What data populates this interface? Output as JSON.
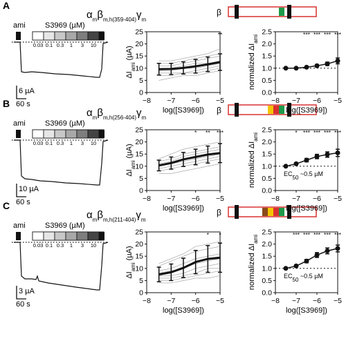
{
  "figure": {
    "conc_label": "S3969 (µM)",
    "ami_label": "ami",
    "beta_label": "β",
    "conc_ticks": [
      "0.03",
      "0.1",
      "0.3",
      "1",
      "3",
      "10"
    ],
    "stars": "***"
  },
  "panels": [
    {
      "letter": "A",
      "title": "αmβm,h(359-404)γm",
      "scale_current": "6 µA",
      "scale_time": "60 s",
      "ec50": "",
      "beta_stripes": [
        "#1e9a4a"
      ]
    },
    {
      "letter": "B",
      "title": "αmβm,h(256-404)γm",
      "scale_current": "10 µA",
      "scale_time": "60 s",
      "ec50": "EC50 ~0.5 µM",
      "beta_stripes": [
        "#f5c400",
        "#d93030",
        "#1e9a4a"
      ]
    },
    {
      "letter": "C",
      "title": "αmβm,h(211-404)γm",
      "scale_current": "3 µA",
      "scale_time": "60 s",
      "ec50": "EC50 ~0.5 µM",
      "beta_stripes": [
        "#8b4a1a",
        "#f5c400",
        "#d93030",
        "#1e9a4a"
      ]
    }
  ],
  "chart_data": [
    {
      "type": "line",
      "panel": "A",
      "title": "",
      "xlabel": "log([S3969])",
      "ylabel": "ΔIami (µA)",
      "xlim": [
        -8,
        -5
      ],
      "ylim": [
        0,
        25
      ],
      "xticks": [
        -8,
        -7,
        -6,
        -5
      ],
      "yticks": [
        0,
        5,
        10,
        15,
        20,
        25
      ],
      "x": [
        -7.5,
        -7,
        -6.5,
        -6,
        -5.5,
        -5
      ],
      "series": [
        {
          "values": [
            9.6,
            9.7,
            10.1,
            10.8,
            11.6,
            12.5
          ],
          "sd": [
            2.4,
            2.3,
            2.5,
            2.8,
            3.0,
            3.4
          ]
        }
      ],
      "significance": [
        "",
        "",
        "",
        "",
        "",
        "**"
      ]
    },
    {
      "type": "line",
      "panel": "A",
      "title": "",
      "xlabel": "log([S3969])",
      "ylabel": "normalized ΔIami",
      "xlim": [
        -8,
        -5
      ],
      "ylim": [
        0,
        2.5
      ],
      "xticks": [
        -8,
        -7,
        -6,
        -5
      ],
      "yticks": [
        0,
        0.5,
        1.0,
        1.5,
        2.0,
        2.5
      ],
      "x": [
        -7.5,
        -7,
        -6.5,
        -6,
        -5.5,
        -5
      ],
      "series": [
        {
          "values": [
            1.0,
            1.0,
            1.04,
            1.1,
            1.18,
            1.3
          ],
          "sd": [
            0,
            0.02,
            0.03,
            0.05,
            0.07,
            0.12
          ]
        }
      ],
      "significance": [
        "",
        "",
        "***",
        "***",
        "***",
        "***"
      ],
      "reference_line": 1.0
    },
    {
      "type": "line",
      "panel": "B",
      "title": "",
      "xlabel": "log([S3969])",
      "ylabel": "ΔIami (µA)",
      "xlim": [
        -8,
        -5
      ],
      "ylim": [
        0,
        25
      ],
      "xticks": [
        -8,
        -7,
        -6,
        -5
      ],
      "yticks": [
        0,
        5,
        10,
        15,
        20,
        25
      ],
      "x": [
        -7.5,
        -7,
        -6.5,
        -6,
        -5.5,
        -5
      ],
      "series": [
        {
          "values": [
            10.3,
            11.3,
            12.8,
            13.8,
            14.8,
            15.4
          ],
          "sd": [
            2.2,
            2.5,
            2.9,
            3.2,
            3.5,
            3.9
          ]
        }
      ],
      "significance": [
        "",
        "",
        "",
        "*",
        "**",
        "***"
      ]
    },
    {
      "type": "line",
      "panel": "B",
      "title": "",
      "xlabel": "log([S3969])",
      "ylabel": "normalized ΔIami",
      "xlim": [
        -8,
        -5
      ],
      "ylim": [
        0,
        2.5
      ],
      "xticks": [
        -8,
        -7,
        -6,
        -5
      ],
      "yticks": [
        0,
        0.5,
        1.0,
        1.5,
        2.0,
        2.5
      ],
      "x": [
        -7.5,
        -7,
        -6.5,
        -6,
        -5.5,
        -5
      ],
      "series": [
        {
          "values": [
            1.0,
            1.1,
            1.25,
            1.4,
            1.48,
            1.55
          ],
          "sd": [
            0,
            0.04,
            0.07,
            0.09,
            0.11,
            0.15
          ]
        }
      ],
      "significance": [
        "",
        "*",
        "***",
        "***",
        "***",
        "***"
      ],
      "reference_line": 1.0
    },
    {
      "type": "line",
      "panel": "C",
      "title": "",
      "xlabel": "log([S3969])",
      "ylabel": "ΔIami (µA)",
      "xlim": [
        -8,
        -5
      ],
      "ylim": [
        0,
        25
      ],
      "xticks": [
        -8,
        -7,
        -6,
        -5
      ],
      "yticks": [
        0,
        5,
        10,
        15,
        20,
        25
      ],
      "x": [
        -7.5,
        -7,
        -6.5,
        -6,
        -5.5,
        -5
      ],
      "series": [
        {
          "values": [
            7.5,
            8.4,
            10.2,
            12.6,
            13.9,
            14.4
          ],
          "sd": [
            3.0,
            3.4,
            4.0,
            4.8,
            5.5,
            6.0
          ]
        }
      ],
      "significance": [
        "",
        "",
        "",
        "",
        "*",
        "*"
      ]
    },
    {
      "type": "line",
      "panel": "C",
      "title": "",
      "xlabel": "log([S3969])",
      "ylabel": "normalized ΔIami",
      "xlim": [
        -8,
        -5
      ],
      "ylim": [
        0,
        2.5
      ],
      "xticks": [
        -8,
        -7,
        -6,
        -5
      ],
      "yticks": [
        0,
        0.5,
        1.0,
        1.5,
        2.0,
        2.5
      ],
      "x": [
        -7.5,
        -7,
        -6.5,
        -6,
        -5.5,
        -5
      ],
      "series": [
        {
          "values": [
            1.0,
            1.1,
            1.3,
            1.55,
            1.72,
            1.82
          ],
          "sd": [
            0,
            0.04,
            0.07,
            0.1,
            0.12,
            0.14
          ]
        }
      ],
      "significance": [
        "",
        "***",
        "***",
        "***",
        "***",
        "***"
      ],
      "reference_line": 1.0
    }
  ]
}
